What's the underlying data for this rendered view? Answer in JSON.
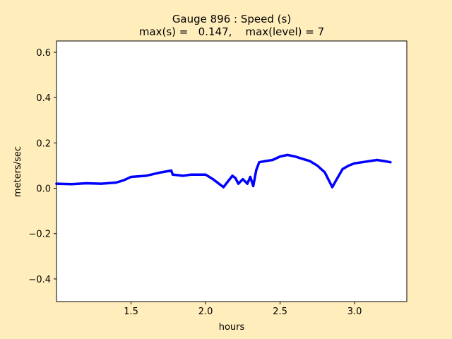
{
  "chart_data": {
    "type": "line",
    "title": "Gauge 896 : Speed (s)",
    "subtitle": "max(s) =   0.147,    max(level) = 7",
    "xlabel": "hours",
    "ylabel": "meters/sec",
    "xlim": [
      1.0,
      3.35
    ],
    "ylim": [
      -0.5,
      0.65
    ],
    "xticks": [
      1.5,
      2.0,
      2.5,
      3.0
    ],
    "xtick_labels": [
      "1.5",
      "2.0",
      "2.5",
      "3.0"
    ],
    "yticks": [
      -0.4,
      -0.2,
      0.0,
      0.2,
      0.4,
      0.6
    ],
    "ytick_labels": [
      "−0.4",
      "−0.2",
      "0.0",
      "0.2",
      "0.4",
      "0.6"
    ],
    "grid": false,
    "series": [
      {
        "color": "#0000ff",
        "x": [
          1.0,
          1.1,
          1.2,
          1.3,
          1.4,
          1.45,
          1.5,
          1.6,
          1.7,
          1.77,
          1.78,
          1.85,
          1.9,
          2.0,
          2.05,
          2.1,
          2.12,
          2.15,
          2.18,
          2.2,
          2.22,
          2.25,
          2.28,
          2.3,
          2.32,
          2.34,
          2.36,
          2.4,
          2.45,
          2.5,
          2.55,
          2.6,
          2.65,
          2.7,
          2.75,
          2.8,
          2.85,
          2.88,
          2.92,
          2.96,
          3.0,
          3.05,
          3.1,
          3.15,
          3.2,
          3.24
        ],
        "y": [
          0.02,
          0.018,
          0.022,
          0.02,
          0.025,
          0.035,
          0.05,
          0.055,
          0.07,
          0.078,
          0.06,
          0.055,
          0.06,
          0.06,
          0.04,
          0.015,
          0.005,
          0.03,
          0.055,
          0.045,
          0.02,
          0.04,
          0.02,
          0.05,
          0.01,
          0.08,
          0.115,
          0.12,
          0.125,
          0.14,
          0.147,
          0.14,
          0.13,
          0.12,
          0.1,
          0.07,
          0.005,
          0.04,
          0.085,
          0.1,
          0.11,
          0.115,
          0.12,
          0.125,
          0.12,
          0.115
        ]
      }
    ]
  }
}
